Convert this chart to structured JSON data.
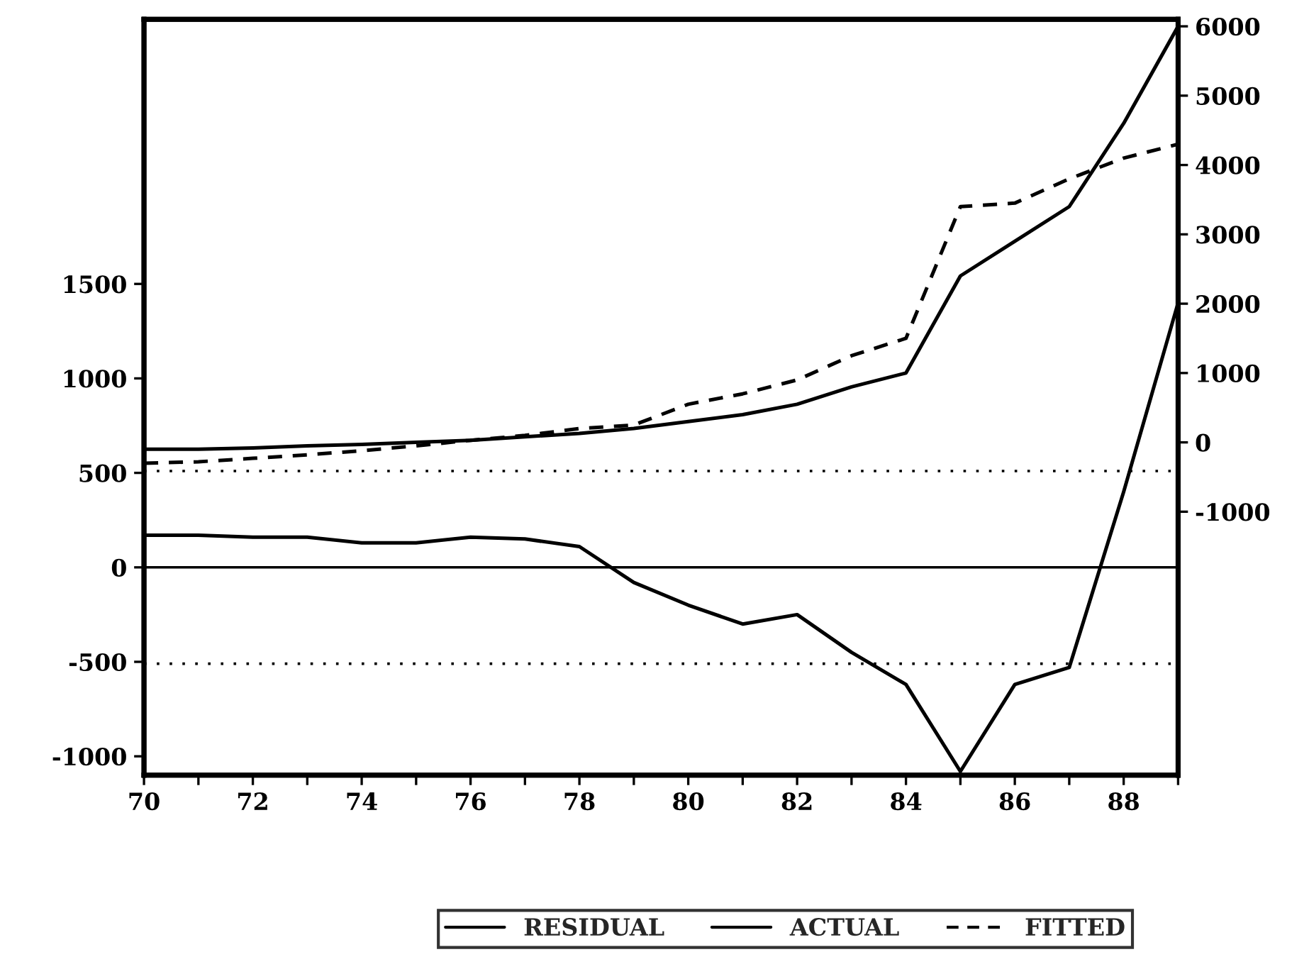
{
  "chart_data": {
    "type": "line",
    "x": [
      70,
      71,
      72,
      73,
      74,
      75,
      76,
      77,
      78,
      79,
      80,
      81,
      82,
      83,
      84,
      85,
      86,
      87,
      88,
      89
    ],
    "series": [
      {
        "name": "RESIDUAL",
        "color": "#000000",
        "line_style": "solid",
        "values": [
          170,
          170,
          160,
          160,
          130,
          130,
          160,
          150,
          110,
          -80,
          -200,
          -300,
          -250,
          -450,
          -620,
          -1080,
          -620,
          -530,
          400,
          1400
        ]
      },
      {
        "name": "ACTUAL",
        "color": "#000000",
        "line_style": "solid",
        "axis": "y2",
        "values": [
          -100,
          -100,
          -80,
          -50,
          -30,
          0,
          30,
          80,
          130,
          200,
          300,
          400,
          550,
          800,
          1000,
          2400,
          2900,
          3400,
          4600,
          6000
        ]
      },
      {
        "name": "FITTED",
        "color": "#000000",
        "line_style": "dashed",
        "axis": "y2",
        "values": [
          -300,
          -280,
          -230,
          -180,
          -120,
          -50,
          30,
          100,
          200,
          250,
          550,
          700,
          900,
          1250,
          1500,
          3400,
          3450,
          3800,
          4100,
          4300
        ]
      }
    ],
    "xlim": [
      70,
      89
    ],
    "xticks": [
      70,
      {
        "value": 71,
        "label": null
      },
      72,
      {
        "value": 73,
        "label": null
      },
      74,
      {
        "value": 75,
        "label": null
      },
      76,
      {
        "value": 77,
        "label": null
      },
      78,
      {
        "value": 79,
        "label": null
      },
      80,
      {
        "value": 81,
        "label": null
      },
      82,
      {
        "value": 83,
        "label": null
      },
      84,
      {
        "value": 85,
        "label": null
      },
      86,
      {
        "value": 87,
        "label": null
      },
      88,
      {
        "value": 89,
        "label": null
      }
    ],
    "ylim": [
      -1100,
      2900
    ],
    "yticks": [
      -1000,
      -500,
      0,
      500,
      1000,
      1500
    ],
    "y2lim": [
      -4800,
      6100
    ],
    "y2ticks": [
      -1000,
      0,
      1000,
      2000,
      3000,
      4000,
      5000,
      6000
    ],
    "ref_lines": [
      {
        "axis": "y",
        "value": 0,
        "line_style": "solid"
      },
      {
        "axis": "y",
        "value": 510,
        "line_style": "dotted"
      },
      {
        "axis": "y",
        "value": -510,
        "line_style": "dotted"
      }
    ],
    "grid": false,
    "legend": "bottom"
  }
}
